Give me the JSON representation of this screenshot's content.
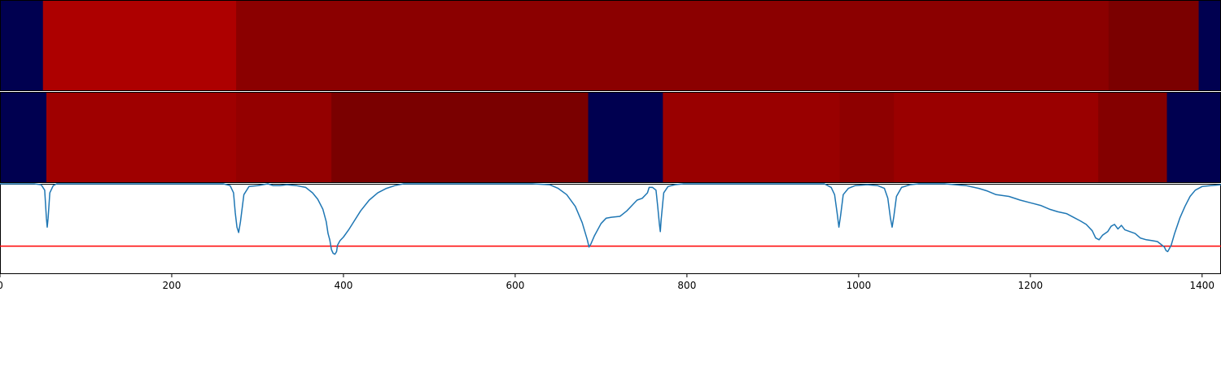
{
  "chart_data": [
    {
      "type": "heatmap",
      "x_range": [
        0,
        1422
      ],
      "segments": [
        {
          "start": 0,
          "end": 50,
          "color": "#000050"
        },
        {
          "start": 50,
          "end": 275,
          "color": "#ad0000"
        },
        {
          "start": 275,
          "end": 1291,
          "color": "#8b0000"
        },
        {
          "start": 1291,
          "end": 1396,
          "color": "#7b0000"
        },
        {
          "start": 1396,
          "end": 1422,
          "color": "#000050"
        }
      ]
    },
    {
      "type": "heatmap",
      "x_range": [
        0,
        1422
      ],
      "segments": [
        {
          "start": 0,
          "end": 54,
          "color": "#000050"
        },
        {
          "start": 54,
          "end": 275,
          "color": "#9f0000"
        },
        {
          "start": 275,
          "end": 386,
          "color": "#940000"
        },
        {
          "start": 386,
          "end": 685,
          "color": "#7a0000"
        },
        {
          "start": 685,
          "end": 772,
          "color": "#000050"
        },
        {
          "start": 772,
          "end": 978,
          "color": "#990000"
        },
        {
          "start": 978,
          "end": 1041,
          "color": "#8e0000"
        },
        {
          "start": 1041,
          "end": 1279,
          "color": "#9a0000"
        },
        {
          "start": 1279,
          "end": 1359,
          "color": "#840000"
        },
        {
          "start": 1359,
          "end": 1422,
          "color": "#000050"
        }
      ]
    },
    {
      "type": "line",
      "xlim": [
        0,
        1422
      ],
      "ylim": [
        0,
        1
      ],
      "xticks": [
        0,
        200,
        400,
        600,
        800,
        1000,
        1200,
        1400
      ],
      "threshold": 0.31,
      "threshold_color": "#ff0000",
      "line_color": "#1f77b4",
      "points": [
        [
          0,
          1.0
        ],
        [
          40,
          1.0
        ],
        [
          48,
          0.99
        ],
        [
          52,
          0.93
        ],
        [
          54,
          0.62
        ],
        [
          55,
          0.52
        ],
        [
          56,
          0.62
        ],
        [
          58,
          0.9
        ],
        [
          62,
          0.98
        ],
        [
          66,
          1.0
        ],
        [
          260,
          1.0
        ],
        [
          268,
          0.98
        ],
        [
          272,
          0.9
        ],
        [
          274,
          0.68
        ],
        [
          276,
          0.52
        ],
        [
          278,
          0.46
        ],
        [
          280,
          0.58
        ],
        [
          284,
          0.88
        ],
        [
          290,
          0.97
        ],
        [
          300,
          0.98
        ],
        [
          306,
          0.99
        ],
        [
          312,
          1.0
        ],
        [
          318,
          0.98
        ],
        [
          326,
          0.98
        ],
        [
          334,
          0.99
        ],
        [
          345,
          0.98
        ],
        [
          356,
          0.96
        ],
        [
          364,
          0.9
        ],
        [
          370,
          0.83
        ],
        [
          376,
          0.72
        ],
        [
          380,
          0.58
        ],
        [
          382,
          0.45
        ],
        [
          384,
          0.38
        ],
        [
          386,
          0.27
        ],
        [
          388,
          0.23
        ],
        [
          390,
          0.22
        ],
        [
          392,
          0.25
        ],
        [
          393,
          0.32
        ],
        [
          396,
          0.37
        ],
        [
          400,
          0.41
        ],
        [
          406,
          0.49
        ],
        [
          412,
          0.58
        ],
        [
          420,
          0.7
        ],
        [
          430,
          0.82
        ],
        [
          440,
          0.9
        ],
        [
          450,
          0.95
        ],
        [
          460,
          0.98
        ],
        [
          470,
          1.0
        ],
        [
          620,
          1.0
        ],
        [
          640,
          0.99
        ],
        [
          650,
          0.95
        ],
        [
          660,
          0.88
        ],
        [
          670,
          0.75
        ],
        [
          678,
          0.57
        ],
        [
          684,
          0.38
        ],
        [
          686,
          0.3
        ],
        [
          688,
          0.33
        ],
        [
          692,
          0.42
        ],
        [
          700,
          0.56
        ],
        [
          706,
          0.62
        ],
        [
          712,
          0.63
        ],
        [
          722,
          0.64
        ],
        [
          730,
          0.7
        ],
        [
          738,
          0.78
        ],
        [
          742,
          0.82
        ],
        [
          748,
          0.84
        ],
        [
          754,
          0.9
        ],
        [
          756,
          0.96
        ],
        [
          760,
          0.96
        ],
        [
          764,
          0.93
        ],
        [
          766,
          0.75
        ],
        [
          768,
          0.55
        ],
        [
          769,
          0.47
        ],
        [
          770,
          0.6
        ],
        [
          773,
          0.9
        ],
        [
          778,
          0.97
        ],
        [
          786,
          0.99
        ],
        [
          796,
          1.0
        ],
        [
          960,
          1.0
        ],
        [
          968,
          0.96
        ],
        [
          972,
          0.88
        ],
        [
          975,
          0.67
        ],
        [
          977,
          0.52
        ],
        [
          979,
          0.65
        ],
        [
          982,
          0.88
        ],
        [
          988,
          0.95
        ],
        [
          996,
          0.98
        ],
        [
          1010,
          0.99
        ],
        [
          1022,
          0.98
        ],
        [
          1030,
          0.95
        ],
        [
          1034,
          0.84
        ],
        [
          1037,
          0.62
        ],
        [
          1039,
          0.52
        ],
        [
          1041,
          0.64
        ],
        [
          1044,
          0.86
        ],
        [
          1050,
          0.96
        ],
        [
          1060,
          0.99
        ],
        [
          1070,
          1.0
        ],
        [
          1100,
          1.0
        ],
        [
          1125,
          0.98
        ],
        [
          1140,
          0.95
        ],
        [
          1150,
          0.92
        ],
        [
          1160,
          0.88
        ],
        [
          1175,
          0.86
        ],
        [
          1188,
          0.82
        ],
        [
          1200,
          0.79
        ],
        [
          1212,
          0.76
        ],
        [
          1222,
          0.72
        ],
        [
          1232,
          0.69
        ],
        [
          1242,
          0.67
        ],
        [
          1250,
          0.63
        ],
        [
          1258,
          0.59
        ],
        [
          1265,
          0.55
        ],
        [
          1272,
          0.48
        ],
        [
          1276,
          0.4
        ],
        [
          1280,
          0.38
        ],
        [
          1284,
          0.43
        ],
        [
          1290,
          0.47
        ],
        [
          1294,
          0.53
        ],
        [
          1298,
          0.55
        ],
        [
          1302,
          0.5
        ],
        [
          1306,
          0.54
        ],
        [
          1310,
          0.49
        ],
        [
          1316,
          0.47
        ],
        [
          1322,
          0.45
        ],
        [
          1328,
          0.4
        ],
        [
          1335,
          0.38
        ],
        [
          1342,
          0.37
        ],
        [
          1348,
          0.36
        ],
        [
          1352,
          0.33
        ],
        [
          1356,
          0.3
        ],
        [
          1358,
          0.26
        ],
        [
          1360,
          0.25
        ],
        [
          1364,
          0.32
        ],
        [
          1368,
          0.45
        ],
        [
          1374,
          0.62
        ],
        [
          1380,
          0.75
        ],
        [
          1386,
          0.86
        ],
        [
          1392,
          0.93
        ],
        [
          1400,
          0.97
        ],
        [
          1410,
          0.98
        ],
        [
          1422,
          0.99
        ]
      ]
    }
  ]
}
